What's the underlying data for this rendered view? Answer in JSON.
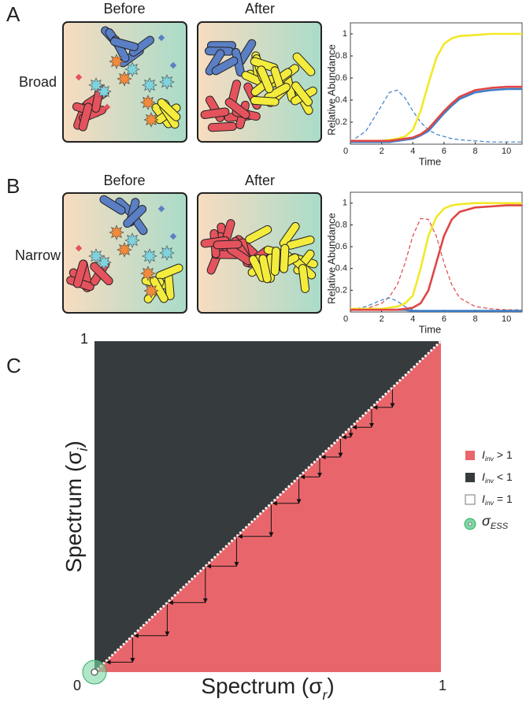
{
  "panels": [
    {
      "label": "A",
      "row_label": "Broad",
      "before": "Before",
      "after": "After"
    },
    {
      "label": "B",
      "row_label": "Narrow",
      "before": "Before",
      "after": "After"
    },
    {
      "label": "C"
    }
  ],
  "chart_data": [
    {
      "type": "line",
      "xlabel": "Time",
      "ylabel": "Relative Abundance",
      "xlim": [
        0,
        11
      ],
      "ylim": [
        0,
        1.1
      ],
      "xticks": [
        0,
        2,
        4,
        6,
        8,
        10
      ],
      "yticks": [
        0.2,
        0.4,
        0.6,
        0.8,
        1
      ],
      "x": [
        0,
        1,
        2,
        2.5,
        3,
        3.5,
        4,
        4.5,
        5,
        5.5,
        6,
        6.5,
        7,
        8,
        9,
        10,
        11
      ],
      "series": [
        {
          "color": "#3d7fc8",
          "dashed": true,
          "values": [
            0.02,
            0.12,
            0.35,
            0.47,
            0.49,
            0.42,
            0.3,
            0.2,
            0.13,
            0.09,
            0.07,
            0.05,
            0.04,
            0.03,
            0.02,
            0.02,
            0.02
          ]
        },
        {
          "color": "#f2e827",
          "dashed": false,
          "values": [
            0.03,
            0.03,
            0.03,
            0.04,
            0.05,
            0.07,
            0.13,
            0.3,
            0.55,
            0.78,
            0.91,
            0.96,
            0.98,
            0.99,
            1,
            1,
            1
          ]
        },
        {
          "color": "#3d7fc8",
          "dashed": false,
          "values": [
            0.02,
            0.02,
            0.02,
            0.02,
            0.03,
            0.04,
            0.05,
            0.08,
            0.12,
            0.2,
            0.28,
            0.35,
            0.41,
            0.47,
            0.49,
            0.5,
            0.5
          ]
        },
        {
          "color": "#e04545",
          "dashed": false,
          "values": [
            0.03,
            0.03,
            0.03,
            0.03,
            0.04,
            0.05,
            0.06,
            0.09,
            0.14,
            0.22,
            0.3,
            0.37,
            0.43,
            0.49,
            0.51,
            0.52,
            0.52
          ]
        }
      ]
    },
    {
      "type": "line",
      "xlabel": "Time",
      "ylabel": "Relative Abundance",
      "xlim": [
        0,
        11
      ],
      "ylim": [
        0,
        1.1
      ],
      "xticks": [
        0,
        2,
        4,
        6,
        8,
        10
      ],
      "yticks": [
        0.2,
        0.4,
        0.6,
        0.8,
        1
      ],
      "x": [
        0,
        1,
        2,
        2.5,
        3,
        3.5,
        4,
        4.5,
        5,
        5.5,
        6,
        6.5,
        7,
        8,
        9,
        10,
        11
      ],
      "series": [
        {
          "color": "#e04545",
          "dashed": true,
          "values": [
            0.02,
            0.03,
            0.08,
            0.14,
            0.25,
            0.45,
            0.7,
            0.86,
            0.85,
            0.7,
            0.45,
            0.25,
            0.13,
            0.05,
            0.03,
            0.02,
            0.02
          ]
        },
        {
          "color": "#3d7fc8",
          "dashed": true,
          "values": [
            0.02,
            0.05,
            0.11,
            0.13,
            0.1,
            0.05,
            0.02,
            0.01,
            0.01,
            0.01,
            0.01,
            0.01,
            0.01,
            0.01,
            0.01,
            0.01,
            0.01
          ]
        },
        {
          "color": "#3d7fc8",
          "dashed": false,
          "values": [
            0.02,
            0.02,
            0.02,
            0.02,
            0.02,
            0.02,
            0.01,
            0.01,
            0.01,
            0.01,
            0.01,
            0.01,
            0.01,
            0.01,
            0.01,
            0.01,
            0.01
          ]
        },
        {
          "color": "#f2e827",
          "dashed": false,
          "values": [
            0.03,
            0.03,
            0.03,
            0.04,
            0.05,
            0.08,
            0.15,
            0.4,
            0.7,
            0.87,
            0.95,
            0.98,
            0.99,
            1,
            1,
            1,
            1
          ]
        },
        {
          "color": "#e04545",
          "dashed": false,
          "values": [
            0.02,
            0.02,
            0.02,
            0.02,
            0.02,
            0.03,
            0.04,
            0.08,
            0.2,
            0.45,
            0.7,
            0.85,
            0.92,
            0.96,
            0.97,
            0.98,
            0.98
          ]
        }
      ]
    },
    {
      "type": "pip",
      "xlabel": [
        "Spectrum (σ",
        "r",
        ")"
      ],
      "ylabel": [
        "Spectrum (σ",
        "i",
        ")"
      ],
      "xlim": [
        0,
        1
      ],
      "ylim": [
        0,
        1
      ],
      "xticks": [
        0,
        1
      ],
      "yticks": [
        1
      ],
      "above_color": "#363c3e",
      "below_color": "#e8666b",
      "steps": [
        0.86,
        0.8,
        0.74,
        0.71,
        0.65,
        0.59,
        0.51,
        0.41,
        0.32,
        0.21,
        0.11,
        0.03
      ],
      "ess": {
        "x": 0,
        "y": 0
      },
      "legend": [
        {
          "label": [
            "I",
            "inv",
            " > 1"
          ],
          "color": "#e8666b"
        },
        {
          "label": [
            "I",
            "inv",
            " < 1"
          ],
          "color": "#363c3e"
        },
        {
          "label": [
            "I",
            "inv",
            " = 1"
          ],
          "color": "#ffffff"
        },
        {
          "label": [
            "σ",
            "ESS"
          ],
          "color": "#7fd6a4"
        }
      ]
    }
  ]
}
